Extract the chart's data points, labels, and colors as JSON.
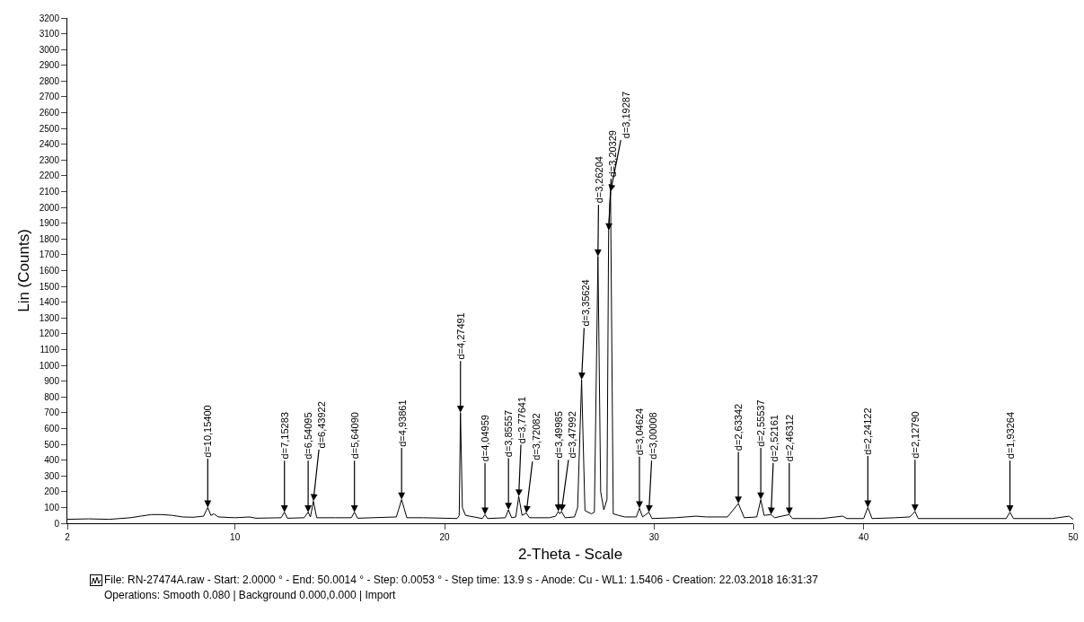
{
  "chart_data": {
    "type": "line",
    "xlabel": "2-Theta - Scale",
    "ylabel": "Lin (Counts)",
    "xlim": [
      2,
      50
    ],
    "xticks": [
      2,
      10,
      20,
      30,
      40,
      50
    ],
    "ylim": [
      0,
      3200
    ],
    "yticks": [
      0,
      100,
      200,
      300,
      400,
      500,
      600,
      700,
      800,
      900,
      1000,
      1100,
      1200,
      1300,
      1400,
      1500,
      1600,
      1700,
      1800,
      1900,
      2000,
      2100,
      2200,
      2300,
      2400,
      2500,
      2600,
      2700,
      2800,
      2900,
      3000,
      3100,
      3200
    ],
    "grid": false,
    "marker": "none",
    "line_style": "solid",
    "series": [
      {
        "color": "#000000",
        "x": [
          2,
          3,
          4,
          5,
          5.5,
          6,
          6.5,
          7,
          7.5,
          8,
          8.5,
          8.7,
          8.85,
          9.0,
          9.2,
          10,
          10.7,
          11,
          12.2,
          12.36,
          12.5,
          13.3,
          13.49,
          13.6,
          13.74,
          13.9,
          14.8,
          15.55,
          15.7,
          15.85,
          17.7,
          17.95,
          18.2,
          19,
          20.6,
          20.7,
          20.76,
          20.85,
          21.0,
          21.8,
          21.93,
          22.05,
          22.9,
          23.05,
          23.2,
          23.4,
          23.54,
          23.7,
          23.9,
          24.05,
          25,
          25.3,
          25.43,
          25.5,
          25.58,
          25.75,
          26.2,
          26.35,
          26.54,
          26.7,
          27.0,
          27.15,
          27.32,
          27.45,
          27.6,
          27.75,
          27.83,
          27.92,
          28.05,
          28.3,
          28.6,
          29.15,
          29.3,
          29.45,
          29.75,
          29.9,
          31,
          32,
          32.5,
          33.5,
          34.02,
          34.3,
          34.9,
          35.09,
          35.25,
          35.58,
          35.75,
          36.45,
          36.6,
          38,
          39,
          39.2,
          40.0,
          40.2,
          40.4,
          41.5,
          42.2,
          42.45,
          42.6,
          44,
          46.8,
          46.98,
          47.15,
          49,
          49.8,
          50
        ],
        "values": [
          25,
          28,
          25,
          35,
          45,
          55,
          55,
          50,
          40,
          38,
          45,
          100,
          50,
          60,
          40,
          35,
          40,
          32,
          35,
          70,
          32,
          35,
          70,
          40,
          140,
          35,
          35,
          35,
          70,
          32,
          40,
          150,
          35,
          35,
          30,
          50,
          700,
          100,
          50,
          30,
          55,
          30,
          35,
          85,
          35,
          40,
          170,
          50,
          65,
          35,
          35,
          45,
          75,
          60,
          75,
          35,
          40,
          100,
          910,
          80,
          60,
          70,
          1690,
          200,
          85,
          150,
          1855,
          2100,
          60,
          50,
          40,
          40,
          95,
          40,
          70,
          30,
          35,
          45,
          40,
          40,
          125,
          35,
          40,
          150,
          50,
          55,
          35,
          55,
          30,
          30,
          45,
          30,
          30,
          100,
          30,
          35,
          40,
          75,
          30,
          30,
          30,
          70,
          30,
          30,
          45,
          25
        ]
      }
    ],
    "annotations": [
      {
        "text": "d=10,15400",
        "x": 8.7,
        "y": 100
      },
      {
        "text": "d=7,15283",
        "x": 12.36,
        "y": 70
      },
      {
        "text": "d=6,54095",
        "x": 13.49,
        "y": 70
      },
      {
        "text": "d=6,43922",
        "x": 13.74,
        "y": 140
      },
      {
        "text": "d=5,64090",
        "x": 15.7,
        "y": 70
      },
      {
        "text": "d=4,93861",
        "x": 17.95,
        "y": 150
      },
      {
        "text": "d=4,27491",
        "x": 20.76,
        "y": 700
      },
      {
        "text": "d=4,04959",
        "x": 21.93,
        "y": 55
      },
      {
        "text": "d=3,85557",
        "x": 23.05,
        "y": 85
      },
      {
        "text": "d=3,77641",
        "x": 23.54,
        "y": 170
      },
      {
        "text": "d=3,72082",
        "x": 23.9,
        "y": 65
      },
      {
        "text": "d=3,49985",
        "x": 25.43,
        "y": 75
      },
      {
        "text": "d=3,47992",
        "x": 25.58,
        "y": 75
      },
      {
        "text": "d=3,35624",
        "x": 26.54,
        "y": 910
      },
      {
        "text": "d=3,26204",
        "x": 27.32,
        "y": 1690
      },
      {
        "text": "d=3,20329",
        "x": 27.83,
        "y": 1855
      },
      {
        "text": "d=3,19287",
        "x": 27.92,
        "y": 2100
      },
      {
        "text": "d=3,04624",
        "x": 29.3,
        "y": 95
      },
      {
        "text": "d=3,00008",
        "x": 29.75,
        "y": 70
      },
      {
        "text": "d=2,63342",
        "x": 34.02,
        "y": 125
      },
      {
        "text": "d=2,55537",
        "x": 35.09,
        "y": 150
      },
      {
        "text": "d=2,52161",
        "x": 35.58,
        "y": 55
      },
      {
        "text": "d=2,46312",
        "x": 36.45,
        "y": 55
      },
      {
        "text": "d=2,24122",
        "x": 40.2,
        "y": 100
      },
      {
        "text": "d=2,12790",
        "x": 42.45,
        "y": 75
      },
      {
        "text": "d=1,93264",
        "x": 46.98,
        "y": 70
      },
      "File: RN-27474A.raw - Start: 2.0000 ° - End: 50.0014 ° - Step: 0.0053 ° - Step time: 13.9 s - Anode: Cu - WL1: 1.5406 - Creation: 22.03.2018 16:31:37",
      "Operations: Smooth 0.080 | Background 0.000,0.000 | Import"
    ]
  }
}
